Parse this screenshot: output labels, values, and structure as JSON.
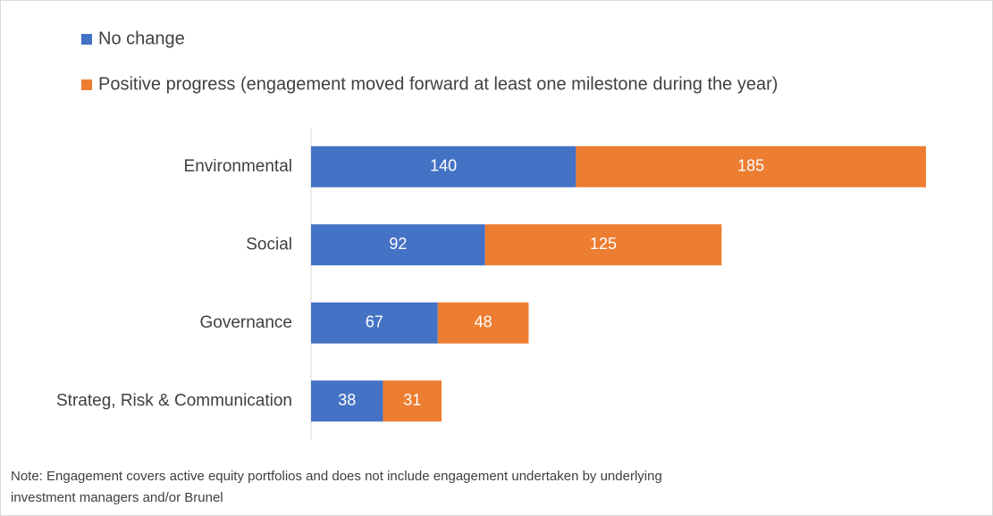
{
  "chart_data": {
    "type": "stacked-bar-horizontal",
    "categories": [
      "Environmental",
      "Social",
      "Governance",
      "Strateg, Risk & Communication"
    ],
    "series": [
      {
        "name": "No change",
        "color": "#4472c4",
        "values": [
          140,
          92,
          67,
          38
        ]
      },
      {
        "name": "Positive progress (engagement moved forward at least one milestone during the year)",
        "color": "#ed7d31",
        "values": [
          185,
          125,
          48,
          31
        ]
      }
    ],
    "note": "Note: Engagement covers active equity portfolios and does not include engagement undertaken by underlying investment managers and/or Brunel"
  }
}
